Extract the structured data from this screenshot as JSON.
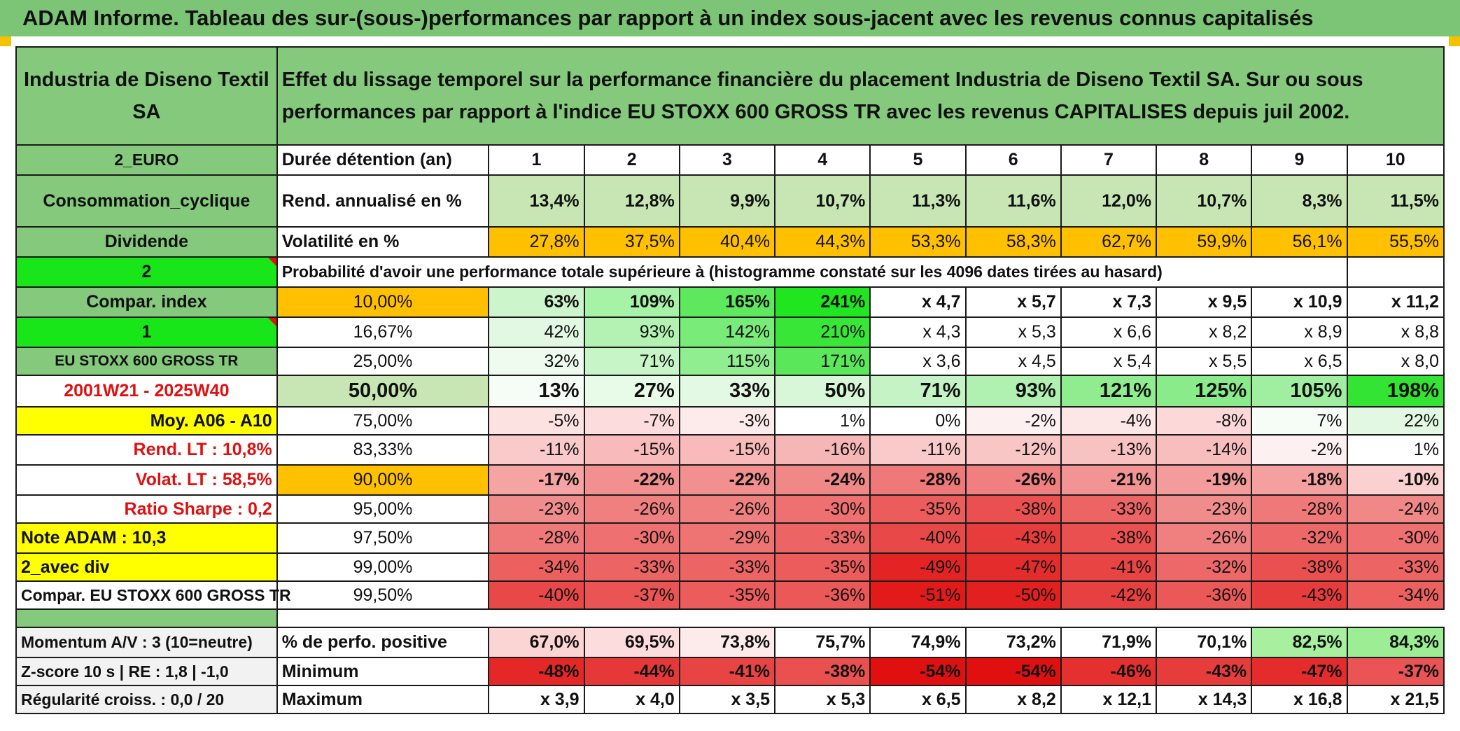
{
  "title": "ADAM Informe. Tableau des sur-(sous-)performances par rapport à un index sous-jacent avec les revenus connus capitalisés",
  "header": {
    "company": "Industria de Diseno Textil SA",
    "description": "Effet du lissage temporel sur la performance financière du placement Industria de Diseno Textil SA. Sur ou sous performances par rapport à l'indice EU STOXX 600 GROSS TR avec les revenus CAPITALISES depuis juil 2002."
  },
  "left_labels": {
    "currency": "2_EURO",
    "sector": "Consommation_cyclique",
    "dividend": "Dividende",
    "num2": "2",
    "compar_index": "Compar. index",
    "num1": "1",
    "index_name": "EU STOXX 600 GROSS TR",
    "period": "2001W21 - 2025W40",
    "moy": "Moy. A06 - A10",
    "rend_lt": "Rend. LT :   10,8%",
    "volat_lt": "Volat. LT :   58,5%",
    "sharpe": "Ratio Sharpe :   0,2",
    "note": "Note ADAM : 10,3",
    "avec_div": "2_avec div",
    "compar_full": "Compar. EU STOXX 600 GROSS TR"
  },
  "duree": {
    "label": "Durée détention (an)",
    "years": [
      "1",
      "2",
      "3",
      "4",
      "5",
      "6",
      "7",
      "8",
      "9",
      "10"
    ]
  },
  "rend": {
    "label": "Rend. annualisé en %",
    "values": [
      "13,4%",
      "12,8%",
      "9,9%",
      "10,7%",
      "11,3%",
      "11,6%",
      "12,0%",
      "10,7%",
      "8,3%",
      "11,5%"
    ]
  },
  "vol": {
    "label": "Volatilité en %",
    "values": [
      "27,8%",
      "37,5%",
      "40,4%",
      "44,3%",
      "53,3%",
      "58,3%",
      "62,7%",
      "59,9%",
      "56,1%",
      "55,5%"
    ]
  },
  "prob_label": "Probabilité d'avoir une performance totale supérieure à (histogramme constaté sur les 4096 dates tirées au hasard)",
  "quantile_rows": [
    {
      "q": "10,00%",
      "v": [
        "63%",
        "109%",
        "165%",
        "241%",
        "x 4,7",
        "x 5,7",
        "x 7,3",
        "x 9,5",
        "x 10,9",
        "x 11,2"
      ],
      "bg": [
        "#ccf5cc",
        "#a6f2a6",
        "#5ee85e",
        "#1fe61f",
        "#ffffff",
        "#ffffff",
        "#ffffff",
        "#ffffff",
        "#ffffff",
        "#ffffff"
      ]
    },
    {
      "q": "16,67%",
      "v": [
        "42%",
        "93%",
        "142%",
        "210%",
        "x 4,3",
        "x 5,3",
        "x 6,6",
        "x 8,2",
        "x 8,9",
        "x 8,8"
      ],
      "bg": [
        "#e2f8e2",
        "#b3f2b3",
        "#78eb78",
        "#37e637",
        "#ffffff",
        "#ffffff",
        "#ffffff",
        "#ffffff",
        "#ffffff",
        "#ffffff"
      ]
    },
    {
      "q": "25,00%",
      "v": [
        "32%",
        "71%",
        "115%",
        "171%",
        "x 3,6",
        "x 4,5",
        "x 5,4",
        "x 5,5",
        "x 6,5",
        "x 8,0"
      ],
      "bg": [
        "#eefbee",
        "#c8f5c8",
        "#90ed90",
        "#5ae85a",
        "#ffffff",
        "#ffffff",
        "#ffffff",
        "#ffffff",
        "#ffffff",
        "#ffffff"
      ]
    },
    {
      "q": "50,00%",
      "v": [
        "13%",
        "27%",
        "33%",
        "50%",
        "71%",
        "93%",
        "121%",
        "125%",
        "105%",
        "198%"
      ],
      "bg": [
        "#f6fdf6",
        "#e8fae8",
        "#e4f9e4",
        "#d8f7d8",
        "#c5f3c5",
        "#b0f0b0",
        "#8fec8f",
        "#8aeb8a",
        "#a0ee9f",
        "#33e433"
      ]
    },
    {
      "q": "75,00%",
      "v": [
        "-5%",
        "-7%",
        "-3%",
        "1%",
        "0%",
        "-2%",
        "-4%",
        "-8%",
        "7%",
        "22%"
      ],
      "bg": [
        "#fde2e2",
        "#fcdcdc",
        "#fdeaea",
        "#ffffff",
        "#ffffff",
        "#fdf0f0",
        "#fde6e6",
        "#fcd8d8",
        "#f6fdf6",
        "#e2f8e2"
      ]
    },
    {
      "q": "83,33%",
      "v": [
        "-11%",
        "-15%",
        "-15%",
        "-16%",
        "-11%",
        "-12%",
        "-13%",
        "-14%",
        "-2%",
        "1%"
      ],
      "bg": [
        "#facaca",
        "#f8baba",
        "#f8baba",
        "#f7b6b6",
        "#facaca",
        "#f9c6c6",
        "#f9c2c2",
        "#f8bebe",
        "#fdf0f0",
        "#ffffff"
      ]
    },
    {
      "q": "90,00%",
      "v": [
        "-17%",
        "-22%",
        "-22%",
        "-24%",
        "-28%",
        "-26%",
        "-21%",
        "-19%",
        "-18%",
        "-10%"
      ],
      "bg": [
        "#f5a3a3",
        "#f29090",
        "#f29090",
        "#f18888",
        "#ef7878",
        "#f08080",
        "#f39494",
        "#f49c9c",
        "#f5a0a0",
        "#fad0d0"
      ]
    },
    {
      "q": "95,00%",
      "v": [
        "-23%",
        "-26%",
        "-26%",
        "-30%",
        "-35%",
        "-38%",
        "-33%",
        "-23%",
        "-28%",
        "-24%"
      ],
      "bg": [
        "#f18c8c",
        "#f08080",
        "#f08080",
        "#ee7070",
        "#ec5c5c",
        "#ea5050",
        "#ec6464",
        "#f18c8c",
        "#ef7878",
        "#f18888"
      ]
    },
    {
      "q": "97,50%",
      "v": [
        "-28%",
        "-30%",
        "-29%",
        "-33%",
        "-40%",
        "-43%",
        "-38%",
        "-26%",
        "-32%",
        "-30%"
      ],
      "bg": [
        "#ef7878",
        "#ee7070",
        "#ee7474",
        "#ec6464",
        "#e84848",
        "#e63c3c",
        "#ea5050",
        "#f08080",
        "#ed6868",
        "#ee7070"
      ]
    },
    {
      "q": "99,00%",
      "v": [
        "-34%",
        "-33%",
        "-33%",
        "-35%",
        "-49%",
        "-47%",
        "-41%",
        "-32%",
        "-38%",
        "-33%"
      ],
      "bg": [
        "#ec6060",
        "#ec6464",
        "#ec6464",
        "#ec5c5c",
        "#e42424",
        "#e42c2c",
        "#e84444",
        "#ed6868",
        "#ea5050",
        "#ec6464"
      ]
    },
    {
      "q": "99,50%",
      "v": [
        "-40%",
        "-37%",
        "-35%",
        "-36%",
        "-51%",
        "-50%",
        "-42%",
        "-36%",
        "-43%",
        "-34%"
      ],
      "bg": [
        "#e84848",
        "#ea5454",
        "#ec5c5c",
        "#eb5858",
        "#e21a1a",
        "#e32020",
        "#e74040",
        "#eb5858",
        "#e63c3c",
        "#ec6060"
      ]
    }
  ],
  "bottom": {
    "momentum": "Momentum A/V : 3 (10=neutre)",
    "zscore": "Z-score 10 s | RE : 1,8 | -1,0",
    "regularite": "Régularité croiss. : 0,0 / 20",
    "pos_label": "% de perfo. positive",
    "pos_values": [
      "67,0%",
      "69,5%",
      "73,8%",
      "75,7%",
      "74,9%",
      "73,2%",
      "71,9%",
      "70,1%",
      "82,5%",
      "84,3%"
    ],
    "pos_bg": [
      "#fbd4d4",
      "#fcdcdc",
      "#fdeaea",
      "#ffffff",
      "#ffffff",
      "#ffffff",
      "#ffffff",
      "#ffffff",
      "#a8ef9f",
      "#9ced94"
    ],
    "min_label": "Minimum",
    "min_values": [
      "-48%",
      "-44%",
      "-41%",
      "-38%",
      "-54%",
      "-54%",
      "-46%",
      "-43%",
      "-47%",
      "-37%"
    ],
    "min_bg": [
      "#e42828",
      "#e63838",
      "#e84444",
      "#ea5050",
      "#e01010",
      "#e01010",
      "#e53030",
      "#e63c3c",
      "#e42c2c",
      "#ea5454"
    ],
    "max_label": "Maximum",
    "max_values": [
      "x 3,9",
      "x 4,0",
      "x 3,5",
      "x 5,3",
      "x 6,5",
      "x 8,2",
      "x 12,1",
      "x 14,3",
      "x 16,8",
      "x 21,5"
    ]
  },
  "colors": {
    "green_header": "#85c97d",
    "lime": "#19e619",
    "yellow": "#ffff00",
    "orange": "#ffc000",
    "light_green": "#c8e6b4"
  }
}
